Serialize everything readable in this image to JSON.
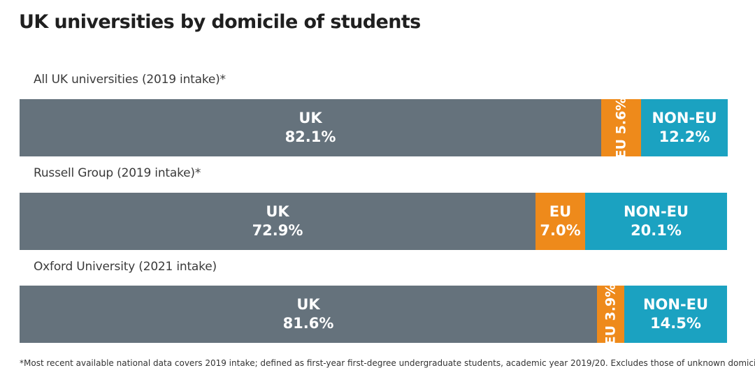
{
  "chart_data": {
    "type": "bar",
    "stacked": true,
    "orientation": "horizontal",
    "title": "UK universities by domicile of students",
    "unit": "%",
    "rows": [
      {
        "label": "All UK universities (2019 intake)*",
        "segments": [
          {
            "name": "UK",
            "value": 82.1,
            "text": "82.1%"
          },
          {
            "name": "EU",
            "value": 5.6,
            "text": "5.6%",
            "vertical_text": "EU 5.6%"
          },
          {
            "name": "NON-EU",
            "value": 12.2,
            "text": "12.2%"
          }
        ]
      },
      {
        "label": "Russell Group (2019 intake)*",
        "segments": [
          {
            "name": "UK",
            "value": 72.9,
            "text": "72.9%"
          },
          {
            "name": "EU",
            "value": 7.0,
            "text": "7.0%"
          },
          {
            "name": "NON-EU",
            "value": 20.1,
            "text": "20.1%"
          }
        ]
      },
      {
        "label": "Oxford University (2021 intake)",
        "segments": [
          {
            "name": "UK",
            "value": 81.6,
            "text": "81.6%"
          },
          {
            "name": "EU",
            "value": 3.9,
            "text": "3.9%",
            "vertical_text": "EU 3.9%"
          },
          {
            "name": "NON-EU",
            "value": 14.5,
            "text": "14.5%"
          }
        ]
      }
    ],
    "colors": {
      "UK": "#65727c",
      "EU": "#ee8a1b",
      "NON-EU": "#1ba2c1"
    }
  },
  "footnote": "*Most recent available national data covers 2019 intake; defined as first-year first-degree undergraduate students, academic year 2019/20. Excludes those of unknown domicile."
}
